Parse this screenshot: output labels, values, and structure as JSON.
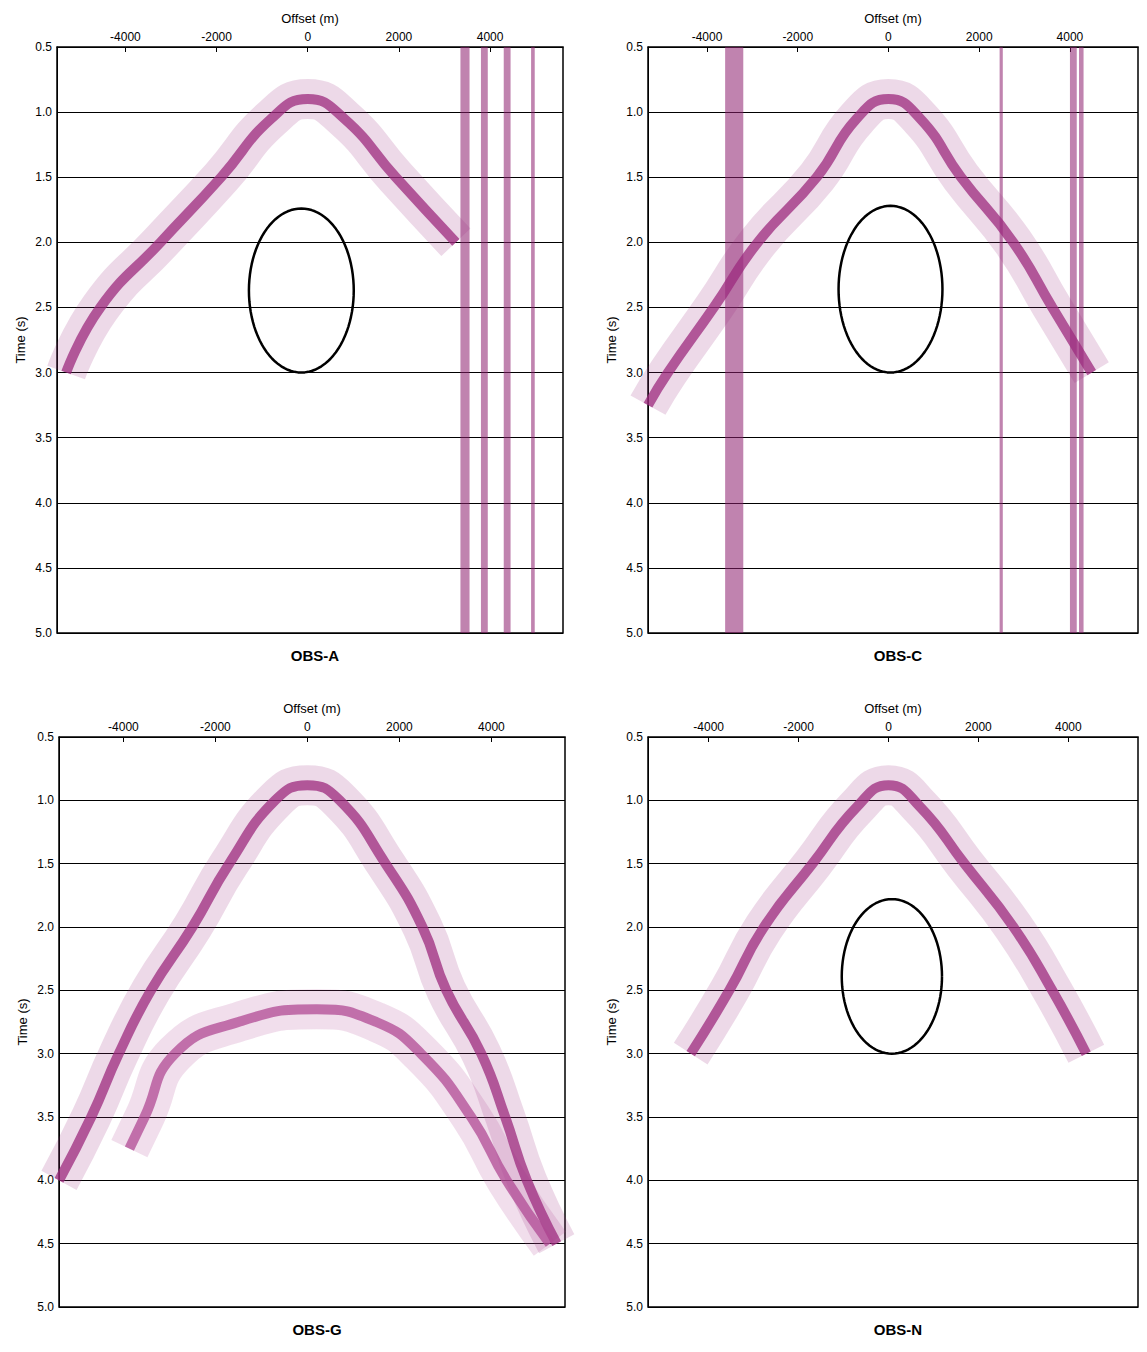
{
  "chart_data": [
    {
      "type": "line",
      "title": "OBS-A",
      "xlabel": "Offset (m)",
      "ylabel": "Time (s)",
      "xlim": [
        -5500,
        5600
      ],
      "xticks": [
        -4000,
        -2000,
        0,
        2000,
        4000
      ],
      "ylim": [
        0.5,
        5.0
      ],
      "yticks": [
        0.5,
        {
          "value": 1,
          "label": "1.0"
        },
        1.5,
        {
          "value": 2,
          "label": "2.0"
        },
        2.5,
        {
          "value": 3,
          "label": "3.0"
        },
        3.5,
        {
          "value": 4,
          "label": "4.0"
        },
        4.5,
        {
          "value": 5,
          "label": "5.0"
        }
      ],
      "grid": true,
      "series": [
        {
          "color": "#9c2a7e",
          "x": [
            -5300,
            -4550,
            -3230,
            -1900,
            -800,
            0,
            800,
            1930,
            3250
          ],
          "values": [
            3.0,
            2.5,
            2.0,
            1.5,
            1.05,
            0.9,
            1.05,
            1.5,
            2.0
          ]
        }
      ],
      "ellipse": {
        "center": [
          -140,
          2.37
        ],
        "radius": [
          1150,
          0.63
        ]
      },
      "noisy_traces": [
        [
          3350,
          3550
        ],
        [
          3800,
          3950
        ],
        [
          4300,
          4450
        ],
        [
          4900,
          4980
        ]
      ]
    },
    {
      "type": "line",
      "title": "OBS-C",
      "xlabel": "Offset (m)",
      "ylabel": "Time (s)",
      "xlim": [
        -5300,
        5500
      ],
      "xticks": [
        -4000,
        -2000,
        0,
        2000,
        4000
      ],
      "ylim": [
        0.5,
        5.0
      ],
      "yticks": [
        0.5,
        {
          "value": 1,
          "label": "1.0"
        },
        1.5,
        {
          "value": 2,
          "label": "2.0"
        },
        2.5,
        {
          "value": 3,
          "label": "3.0"
        },
        3.5,
        {
          "value": 4,
          "label": "4.0"
        },
        4.5,
        {
          "value": 5,
          "label": "5.0"
        }
      ],
      "grid": true,
      "series": [
        {
          "color": "#9c2a7e",
          "x": [
            -5300,
            -4860,
            -3850,
            -2880,
            -1580,
            -700,
            0,
            700,
            1600,
            2750,
            3610,
            4480
          ],
          "values": [
            3.25,
            3.0,
            2.5,
            2.0,
            1.5,
            1.05,
            0.9,
            1.05,
            1.5,
            2.0,
            2.5,
            3.0
          ]
        }
      ],
      "ellipse": {
        "center": [
          45,
          2.36
        ],
        "radius": [
          1145,
          0.64
        ]
      },
      "noisy_traces": [
        [
          -3600,
          -3200
        ],
        [
          2450,
          2520
        ],
        [
          4000,
          4150
        ],
        [
          4200,
          4300
        ]
      ]
    },
    {
      "type": "line",
      "title": "OBS-G",
      "xlabel": "Offset (m)",
      "ylabel": "Time (s)",
      "xlim": [
        -5400,
        5600
      ],
      "xticks": [
        -4000,
        -2000,
        0,
        2000,
        4000
      ],
      "ylim": [
        0.5,
        5.0
      ],
      "yticks": [
        0.5,
        {
          "value": 1,
          "label": "1.0"
        },
        1.5,
        {
          "value": 2,
          "label": "2.0"
        },
        2.5,
        {
          "value": 3,
          "label": "3.0"
        },
        3.5,
        {
          "value": 4,
          "label": "4.0"
        },
        4.5,
        {
          "value": 5,
          "label": "5.0"
        }
      ],
      "grid": true,
      "series": [
        {
          "color": "#9c2a7e",
          "x": [
            -5400,
            -4700,
            -4100,
            -3400,
            -2500,
            -1700,
            -700,
            0,
            700,
            1700,
            2500,
            3020,
            3780,
            4300,
            4770,
            5420
          ],
          "values": [
            4.0,
            3.5,
            3.0,
            2.5,
            2.0,
            1.5,
            1.0,
            0.88,
            1.0,
            1.5,
            2.0,
            2.5,
            3.0,
            3.5,
            4.0,
            4.5
          ]
        },
        {
          "color": "#b04a94",
          "x": [
            -3870,
            -3540,
            -2880,
            -1500,
            200,
            1500,
            2470,
            3560,
            4330,
            5270
          ],
          "values": [
            3.75,
            3.5,
            3.0,
            2.75,
            2.65,
            2.75,
            3.0,
            3.5,
            4.0,
            4.5
          ]
        }
      ]
    },
    {
      "type": "line",
      "title": "OBS-N",
      "xlabel": "Offset (m)",
      "ylabel": "Time (s)",
      "xlim": [
        -5350,
        5550
      ],
      "xticks": [
        -4000,
        -2000,
        0,
        2000,
        4000
      ],
      "ylim": [
        0.5,
        5.0
      ],
      "yticks": [
        0.5,
        {
          "value": 1,
          "label": "1.0"
        },
        1.5,
        {
          "value": 2,
          "label": "2.0"
        },
        2.5,
        {
          "value": 3,
          "label": "3.0"
        },
        3.5,
        {
          "value": 4,
          "label": "4.0"
        },
        4.5,
        {
          "value": 5,
          "label": "5.0"
        }
      ],
      "grid": true,
      "series": [
        {
          "color": "#9c2a7e",
          "x": [
            -4400,
            -3540,
            -2770,
            -1690,
            -700,
            0,
            700,
            1690,
            2780,
            3640,
            4400
          ],
          "values": [
            3.0,
            2.5,
            2.0,
            1.5,
            1.05,
            0.88,
            1.05,
            1.5,
            2.0,
            2.5,
            3.0
          ]
        }
      ],
      "ellipse": {
        "center": [
          75,
          2.39
        ],
        "radius": [
          1115,
          0.61
        ]
      }
    }
  ]
}
